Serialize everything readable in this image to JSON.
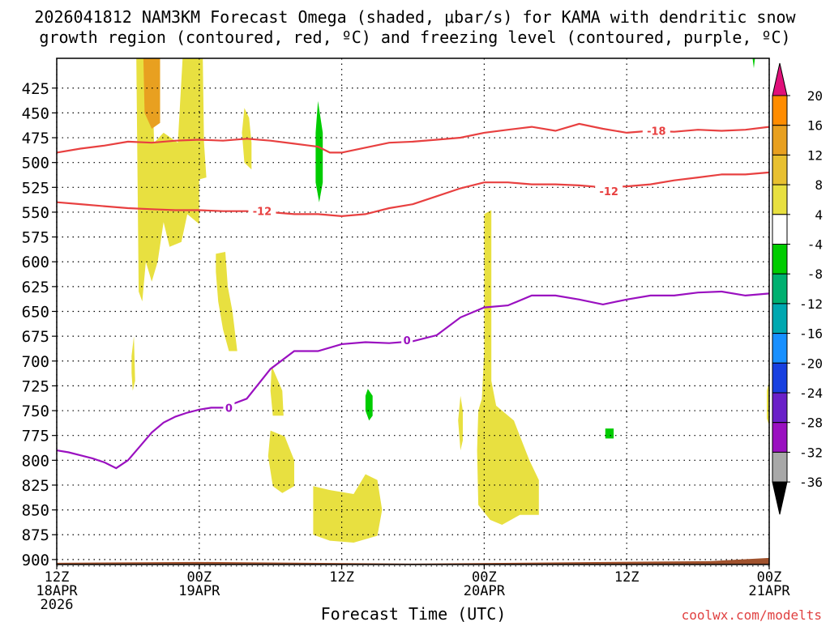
{
  "chart_data": {
    "type": "heatmap",
    "title_line1": "2026041812 NAM3KM Forecast Omega (shaded, μbar/s) for KAMA with dendritic snow",
    "title_line2": "growth region (contoured, red, ºC) and freezing level (contoured, purple, ºC)",
    "xlabel": "Forecast Time (UTC)",
    "credit": "coolwx.com/modelts",
    "y_ticks": [
      "425",
      "450",
      "475",
      "500",
      "525",
      "550",
      "575",
      "600",
      "625",
      "650",
      "675",
      "700",
      "725",
      "750",
      "775",
      "800",
      "825",
      "850",
      "875",
      "900"
    ],
    "y_values": [
      425,
      450,
      475,
      500,
      525,
      550,
      575,
      600,
      625,
      650,
      675,
      700,
      725,
      750,
      775,
      800,
      825,
      850,
      875,
      900
    ],
    "ylim": [
      395,
      905
    ],
    "x_ticks": [
      {
        "hour": 0,
        "line1": "12Z",
        "line2": "18APR",
        "line3": "2026"
      },
      {
        "hour": 12,
        "line1": "00Z",
        "line2": "19APR",
        "line3": ""
      },
      {
        "hour": 24,
        "line1": "12Z",
        "line2": "",
        "line3": ""
      },
      {
        "hour": 36,
        "line1": "00Z",
        "line2": "20APR",
        "line3": ""
      },
      {
        "hour": 48,
        "line1": "12Z",
        "line2": "",
        "line3": ""
      },
      {
        "hour": 60,
        "line1": "00Z",
        "line2": "21APR",
        "line3": ""
      }
    ],
    "xlim_hours": [
      0,
      60
    ],
    "grid": true,
    "legend_levels": [
      "20",
      "16",
      "12",
      "8",
      "4",
      "-4",
      "-8",
      "-12",
      "-16",
      "-20",
      "-24",
      "-28",
      "-32",
      "-36"
    ],
    "legend_colors": [
      "#ff8c00",
      "#e8a020",
      "#e8c030",
      "#e8e040",
      "#ffffff",
      "#00cc00",
      "#00b070",
      "#00a8b0",
      "#1890ff",
      "#1840e0",
      "#6a20c8",
      "#9a10c0",
      "#a8a8a8"
    ],
    "contour_labels": [
      {
        "text": "-18",
        "hour": 50.5,
        "pressure": 468
      },
      {
        "text": "-12",
        "hour": 46.5,
        "pressure": 529
      },
      {
        "text": "-12",
        "hour": 17.3,
        "pressure": 549
      },
      {
        "text": "0",
        "hour": 14.5,
        "pressure": 747
      },
      {
        "text": "0",
        "hour": 29.5,
        "pressure": 679
      }
    ],
    "series": [
      {
        "name": "-18",
        "x": [
          0,
          2,
          4,
          6,
          8,
          10,
          12,
          14,
          16,
          18,
          20,
          22,
          23,
          24,
          26,
          28,
          30,
          32,
          34,
          36,
          38,
          40,
          42,
          44,
          46,
          48,
          50,
          52,
          54,
          56,
          58,
          60
        ],
        "y": [
          490,
          486,
          483,
          479,
          480,
          478,
          477,
          478,
          476,
          478,
          481,
          484,
          490,
          490,
          485,
          480,
          479,
          477,
          475,
          470,
          467,
          464,
          468,
          461,
          466,
          470,
          468,
          469,
          467,
          468,
          467,
          464
        ]
      },
      {
        "name": "-12",
        "x": [
          0,
          2,
          4,
          6,
          8,
          10,
          12,
          14,
          16,
          18,
          20,
          22,
          24,
          26,
          28,
          30,
          32,
          34,
          36,
          38,
          40,
          42,
          44,
          46,
          48,
          50,
          52,
          54,
          56,
          58,
          60
        ],
        "y": [
          540,
          542,
          544,
          546,
          547,
          548,
          548,
          549,
          549,
          550,
          552,
          552,
          554,
          552,
          546,
          542,
          534,
          526,
          520,
          520,
          522,
          522,
          523,
          525,
          524,
          522,
          518,
          515,
          512,
          512,
          510
        ]
      },
      {
        "name": "0",
        "x": [
          0,
          1,
          2,
          3,
          4,
          5,
          6,
          7,
          8,
          9,
          10,
          11,
          12,
          13,
          14,
          16,
          18,
          20,
          22,
          24,
          26,
          28,
          30,
          32,
          34,
          36,
          38,
          40,
          42,
          44,
          46,
          48,
          50,
          52,
          54,
          56,
          58,
          60
        ],
        "y": [
          790,
          792,
          795,
          798,
          802,
          808,
          800,
          786,
          772,
          762,
          756,
          752,
          749,
          747,
          747,
          738,
          708,
          690,
          690,
          683,
          681,
          682,
          680,
          674,
          656,
          646,
          644,
          634,
          634,
          638,
          643,
          638,
          634,
          634,
          631,
          630,
          634,
          632
        ]
      }
    ],
    "omega_regions": [
      {
        "color": "#e8e040",
        "points": [
          [
            6.7,
            395
          ],
          [
            8,
            395
          ],
          [
            8.2,
            480
          ],
          [
            9,
            470
          ],
          [
            10.2,
            480
          ],
          [
            10.6,
            395
          ],
          [
            12.3,
            395
          ],
          [
            12.4,
            480
          ],
          [
            12.6,
            515
          ],
          [
            12.0,
            517
          ],
          [
            12.0,
            562
          ],
          [
            11.0,
            552
          ],
          [
            10.5,
            580
          ],
          [
            9.5,
            585
          ],
          [
            9.0,
            560
          ],
          [
            8.5,
            600
          ],
          [
            8,
            620
          ],
          [
            7.5,
            600
          ],
          [
            7.2,
            640
          ],
          [
            6.9,
            630
          ]
        ]
      },
      {
        "color": "#e8a020",
        "points": [
          [
            7.3,
            395
          ],
          [
            8.7,
            395
          ],
          [
            8.7,
            460
          ],
          [
            8.0,
            466
          ],
          [
            7.4,
            450
          ]
        ]
      },
      {
        "color": "#e8e040",
        "points": [
          [
            15.8,
            445
          ],
          [
            16.2,
            455
          ],
          [
            16.4,
            480
          ],
          [
            16.4,
            507
          ],
          [
            15.8,
            500
          ],
          [
            15.6,
            470
          ]
        ]
      },
      {
        "color": "#e8e040",
        "points": [
          [
            13.4,
            592
          ],
          [
            14.2,
            590
          ],
          [
            14.4,
            625
          ],
          [
            14.8,
            650
          ],
          [
            15.2,
            690
          ],
          [
            14.5,
            690
          ],
          [
            14.0,
            668
          ],
          [
            13.6,
            640
          ],
          [
            13.4,
            610
          ]
        ]
      },
      {
        "color": "#e8e040",
        "points": [
          [
            6.3,
            695
          ],
          [
            6.5,
            675
          ],
          [
            6.6,
            720
          ],
          [
            6.4,
            730
          ],
          [
            6.3,
            712
          ]
        ]
      },
      {
        "color": "#e8e040",
        "points": [
          [
            18.1,
            705
          ],
          [
            19.0,
            730
          ],
          [
            19.1,
            755
          ],
          [
            18.2,
            755
          ],
          [
            18.0,
            730
          ]
        ]
      },
      {
        "color": "#e8e040",
        "points": [
          [
            18.0,
            770
          ],
          [
            19.2,
            776
          ],
          [
            20.0,
            800
          ],
          [
            20.0,
            826
          ],
          [
            19.0,
            833
          ],
          [
            18.2,
            826
          ],
          [
            17.8,
            796
          ]
        ]
      },
      {
        "color": "#e8e040",
        "points": [
          [
            21.6,
            826
          ],
          [
            23.0,
            830
          ],
          [
            25.0,
            834
          ],
          [
            26.0,
            814
          ],
          [
            27.0,
            820
          ],
          [
            27.4,
            850
          ],
          [
            27.0,
            876
          ],
          [
            25.0,
            883
          ],
          [
            23.0,
            881
          ],
          [
            21.6,
            875
          ]
        ]
      },
      {
        "color": "#e8e040",
        "points": [
          [
            36.0,
            552
          ],
          [
            36.6,
            548
          ],
          [
            36.6,
            720
          ],
          [
            37.0,
            745
          ],
          [
            38.5,
            760
          ],
          [
            39.8,
            800
          ],
          [
            40.6,
            820
          ],
          [
            40.6,
            855
          ],
          [
            39.0,
            855
          ],
          [
            37.5,
            865
          ],
          [
            36.5,
            860
          ],
          [
            35.5,
            845
          ],
          [
            35.4,
            790
          ],
          [
            35.5,
            750
          ],
          [
            35.8,
            738
          ],
          [
            36.0,
            690
          ]
        ]
      },
      {
        "color": "#e8e040",
        "points": [
          [
            34.0,
            735
          ],
          [
            34.2,
            750
          ],
          [
            34.2,
            780
          ],
          [
            34.0,
            790
          ],
          [
            33.8,
            760
          ]
        ]
      },
      {
        "color": "#e8e040",
        "points": [
          [
            59.8,
            730
          ],
          [
            60,
            720
          ],
          [
            60,
            765
          ],
          [
            59.8,
            758
          ]
        ]
      },
      {
        "color": "#00cc00",
        "points": [
          [
            22.0,
            438
          ],
          [
            22.4,
            470
          ],
          [
            22.4,
            520
          ],
          [
            22.1,
            540
          ],
          [
            21.8,
            520
          ],
          [
            21.8,
            470
          ]
        ]
      },
      {
        "color": "#00cc00",
        "points": [
          [
            26.2,
            728
          ],
          [
            26.6,
            735
          ],
          [
            26.6,
            755
          ],
          [
            26.3,
            760
          ],
          [
            26.0,
            750
          ],
          [
            26.0,
            735
          ]
        ]
      },
      {
        "color": "#00cc00",
        "points": [
          [
            46.2,
            768
          ],
          [
            46.9,
            768
          ],
          [
            46.9,
            778
          ],
          [
            46.2,
            778
          ]
        ]
      },
      {
        "color": "#00cc00",
        "points": [
          [
            58.6,
            395
          ],
          [
            58.8,
            395
          ],
          [
            58.7,
            405
          ]
        ]
      }
    ],
    "terrain_color": "#a0522d"
  }
}
